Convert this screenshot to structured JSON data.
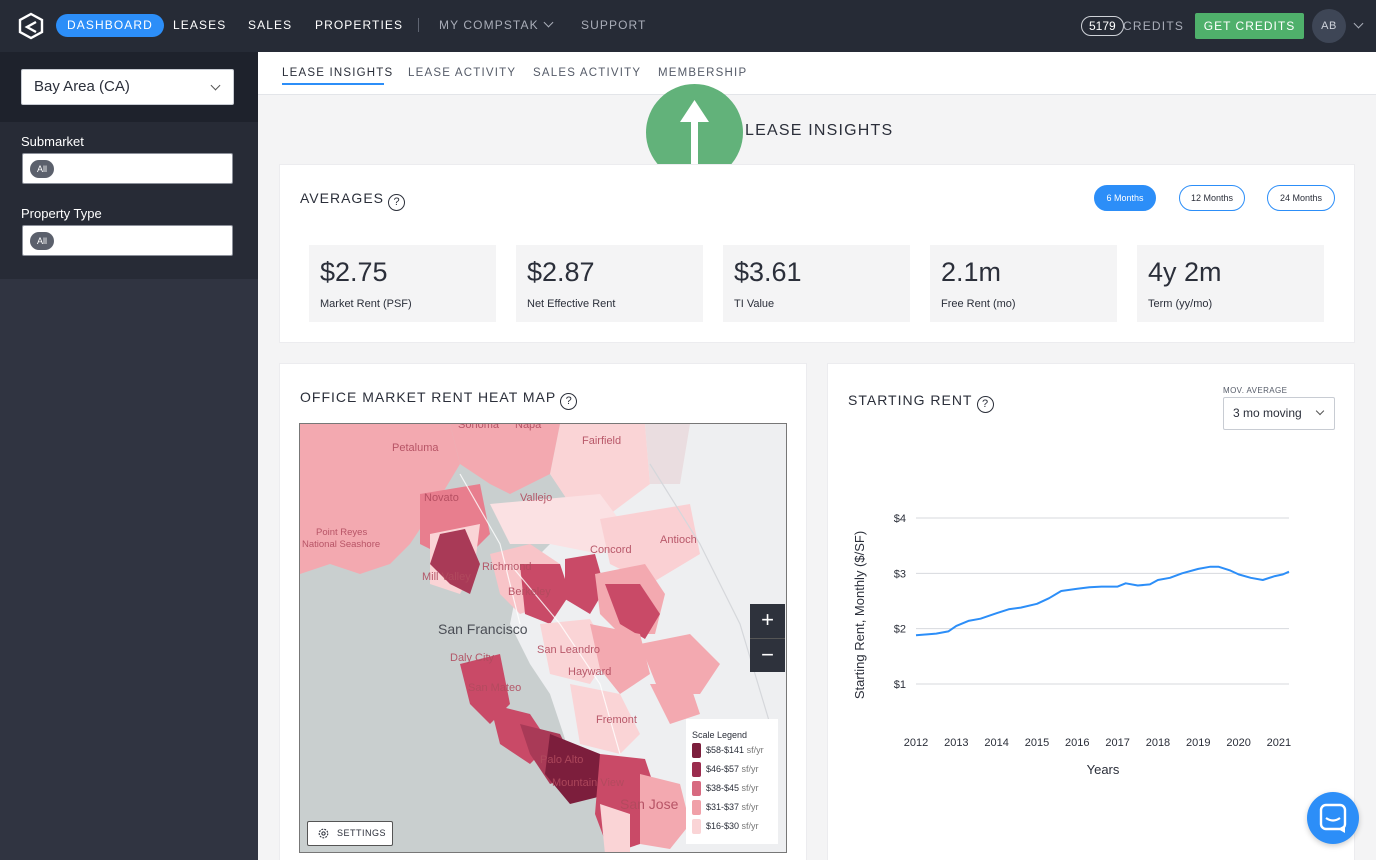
{
  "topnav": {
    "items": [
      {
        "label": "DASHBOARD",
        "active": true
      },
      {
        "label": "LEASES"
      },
      {
        "label": "SALES"
      },
      {
        "label": "PROPERTIES"
      }
    ],
    "my_compstak": "MY COMPSTAK",
    "support": "SUPPORT",
    "credits_count": "5179",
    "credits_label": "CREDITS",
    "get_credits": "GET CREDITS",
    "avatar_initials": "AB",
    "icons": {
      "logo": "compstak-logo-icon",
      "dropdown": "chevron-down-icon"
    }
  },
  "sidebar": {
    "market": "Bay Area (CA)",
    "submarket_label": "Submarket",
    "submarket_value": "All",
    "property_type_label": "Property Type",
    "property_type_value": "All"
  },
  "subnav": {
    "tabs": [
      {
        "label": "LEASE INSIGHTS",
        "active": true
      },
      {
        "label": "LEASE ACTIVITY"
      },
      {
        "label": "SALES ACTIVITY"
      },
      {
        "label": "MEMBERSHIP"
      }
    ]
  },
  "page_title": "LEASE INSIGHTS",
  "averages": {
    "title": "AVERAGES",
    "help": "?",
    "periods": [
      {
        "label": "6 Months",
        "active": true
      },
      {
        "label": "12 Months"
      },
      {
        "label": "24 Months"
      }
    ],
    "stats": [
      {
        "value": "$2.75",
        "label": "Market Rent (PSF)"
      },
      {
        "value": "$2.87",
        "label": "Net Effective Rent"
      },
      {
        "value": "$3.61",
        "label": "TI Value"
      },
      {
        "value": "2.1m",
        "label": "Free Rent (mo)"
      },
      {
        "value": "4y 2m",
        "label": "Term (yy/mo)"
      }
    ]
  },
  "heatmap": {
    "title": "OFFICE MARKET RENT HEAT MAP",
    "help": "?",
    "place_labels": {
      "sonoma": "Sonoma",
      "napa": "Napa",
      "petaluma": "Petaluma",
      "fairfield": "Fairfield",
      "novato": "Novato",
      "vallejo": "Vallejo",
      "point_reyes": "Point Reyes",
      "seashore": "National Seashore",
      "concord": "Concord",
      "antioch": "Antioch",
      "mill_valley": "Mill Valley",
      "richmond": "Richmond",
      "berkeley": "Berkeley",
      "san_francisco": "San Francisco",
      "san_leandro": "San Leandro",
      "daly_city": "Daly City",
      "hayward": "Hayward",
      "san_mateo": "San Mateo",
      "fremont": "Fremont",
      "palo_alto": "Palo Alto",
      "mountain_view": "Mountain View",
      "san_jose": "San Jose"
    },
    "zoom_in": "+",
    "zoom_out": "−",
    "legend_title": "Scale Legend",
    "legend": [
      {
        "range": "$58-$141",
        "unit": "sf/yr",
        "color": "#7c1e3c"
      },
      {
        "range": "$46-$57",
        "unit": "sf/yr",
        "color": "#9b2c4e"
      },
      {
        "range": "$38-$45",
        "unit": "sf/yr",
        "color": "#d76a80"
      },
      {
        "range": "$31-$37",
        "unit": "sf/yr",
        "color": "#f0a0a8"
      },
      {
        "range": "$16-$30",
        "unit": "sf/yr",
        "color": "#fad4d6"
      }
    ],
    "settings": "SETTINGS"
  },
  "starting_rent": {
    "title": "STARTING RENT",
    "help": "?",
    "mov_average_label": "MOV. AVERAGE",
    "mov_average_value": "3 mo moving"
  },
  "chart_data": {
    "type": "line",
    "title": "STARTING RENT",
    "xlabel": "Years",
    "ylabel": "Starting Rent, Monthly ($/SF)",
    "x_ticks": [
      "2012",
      "2013",
      "2014",
      "2015",
      "2016",
      "2017",
      "2018",
      "2019",
      "2020",
      "2021"
    ],
    "y_ticks": [
      "$1",
      "$2",
      "$3",
      "$4"
    ],
    "xlim": [
      2012,
      2021.25
    ],
    "ylim": [
      1,
      4
    ],
    "grid": true,
    "color": "#2c8ef8",
    "series": [
      {
        "x": [
          2012.0,
          2012.5,
          2012.8,
          2013.0,
          2013.3,
          2013.6,
          2014.0,
          2014.3,
          2014.6,
          2015.0,
          2015.3,
          2015.6,
          2016.0,
          2016.3,
          2016.6,
          2017.0,
          2017.2,
          2017.5,
          2017.8,
          2018.0,
          2018.3,
          2018.6,
          2019.0,
          2019.3,
          2019.5,
          2019.8,
          2020.0,
          2020.3,
          2020.6,
          2020.9,
          2021.1,
          2021.25
        ],
        "y": [
          1.88,
          1.91,
          1.95,
          2.05,
          2.14,
          2.18,
          2.28,
          2.35,
          2.38,
          2.45,
          2.55,
          2.68,
          2.72,
          2.75,
          2.76,
          2.76,
          2.82,
          2.78,
          2.8,
          2.88,
          2.92,
          3.0,
          3.08,
          3.12,
          3.12,
          3.05,
          2.98,
          2.92,
          2.88,
          2.95,
          2.98,
          3.03
        ]
      }
    ]
  }
}
